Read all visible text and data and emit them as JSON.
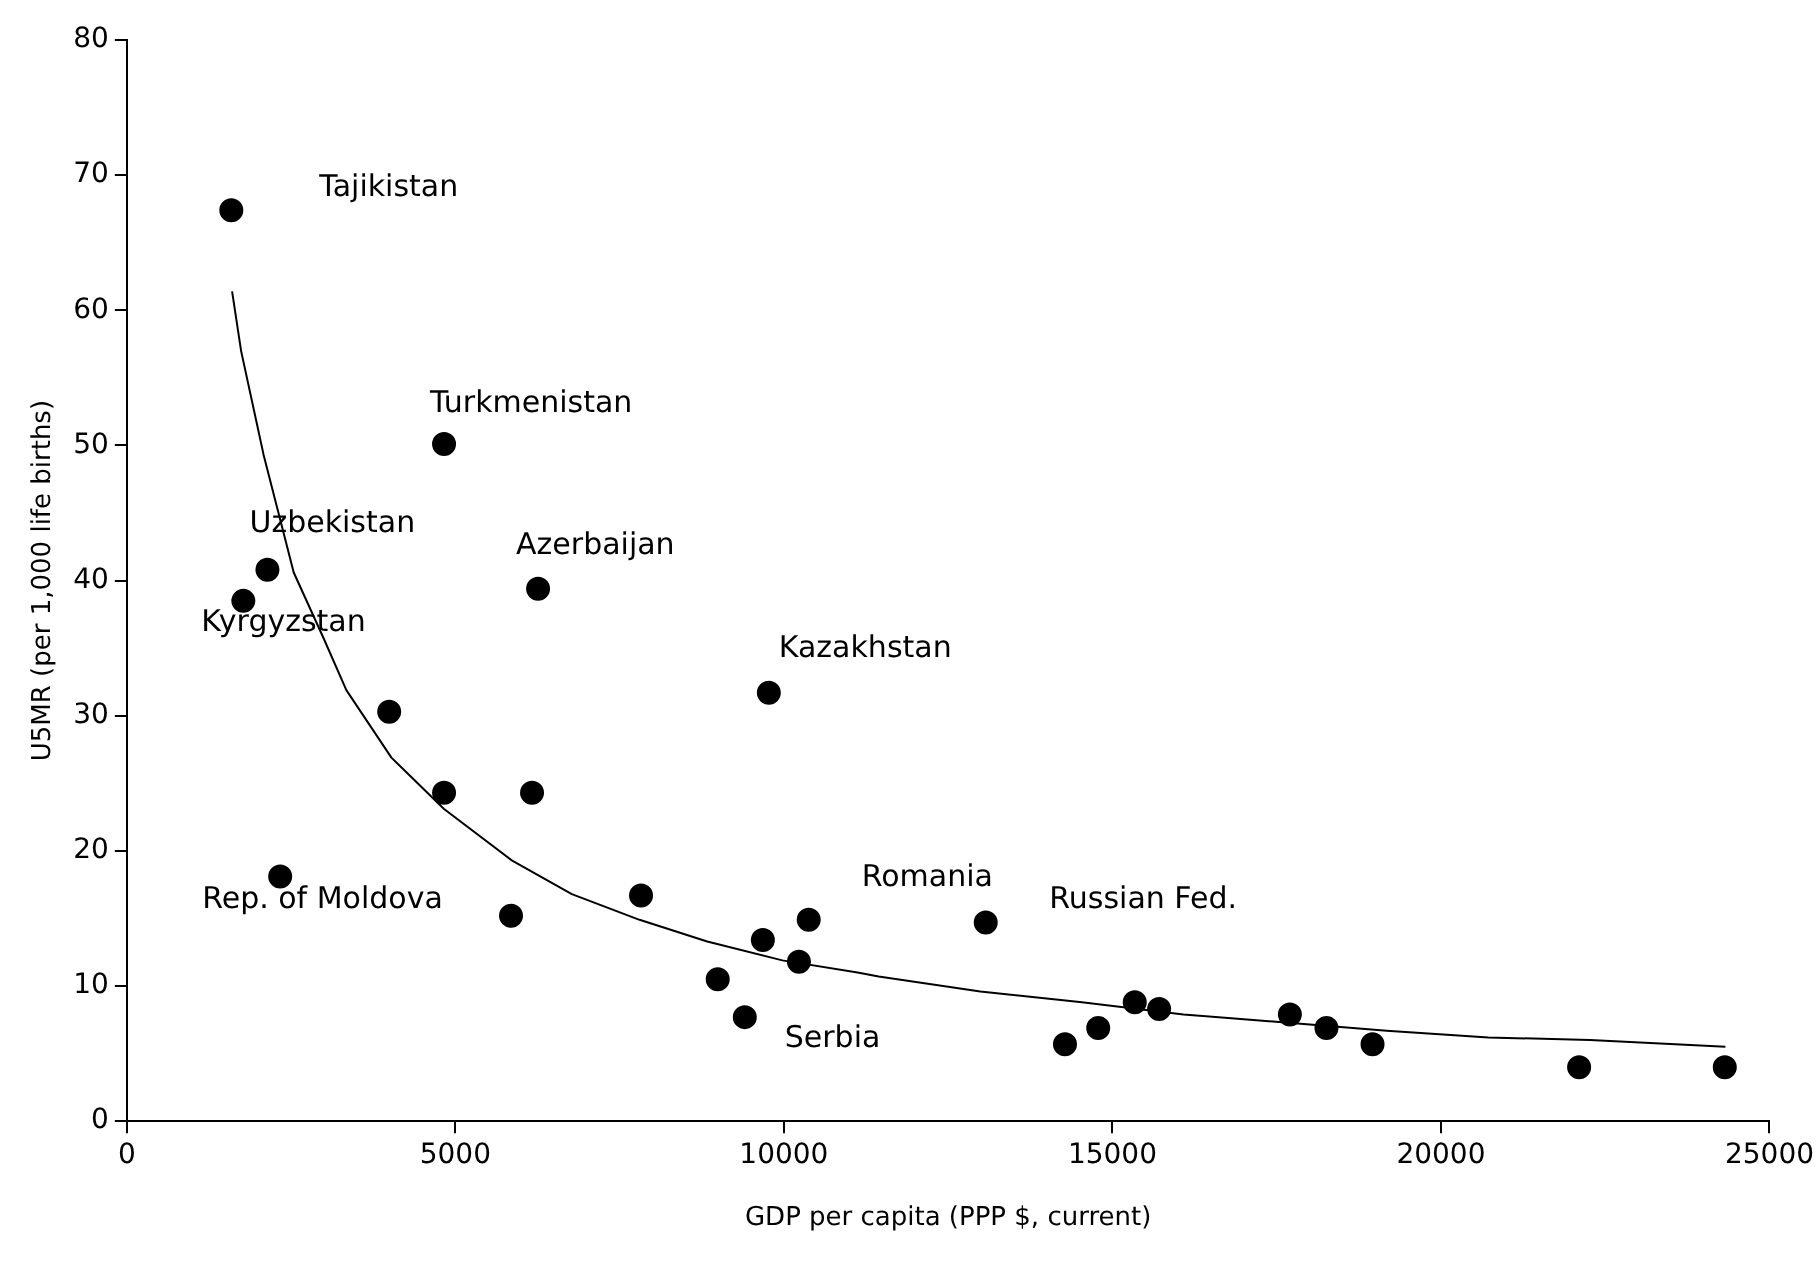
{
  "chart_data": {
    "type": "scatter",
    "xlabel": "GDP per capita (PPP $, current)",
    "ylabel": "U5MR (per 1,000 life births)",
    "xlim": [
      0,
      25000
    ],
    "xticks": [
      0,
      5000,
      10000,
      15000,
      20000,
      25000
    ],
    "ylim": [
      0,
      80
    ],
    "yticks": [
      0,
      10,
      20,
      30,
      40,
      50,
      60,
      70,
      80
    ],
    "grid": false,
    "legend": false,
    "marker": "circle",
    "series": [
      {
        "type": "scatter",
        "color": "#000000",
        "x": [
          1590,
          4828,
          2140,
          1773,
          6259,
          9771,
          3993,
          4828,
          6167,
          2334,
          5847,
          7826,
          9680,
          10378,
          10229,
          8993,
          9405,
          13072,
          14278,
          14784,
          15340,
          15711,
          17701,
          18258,
          18959,
          22103,
          24320
        ],
        "values": [
          67.4,
          50.1,
          40.8,
          38.5,
          39.4,
          31.7,
          30.3,
          24.3,
          24.3,
          18.1,
          15.2,
          16.7,
          13.4,
          14.9,
          11.8,
          10.5,
          7.7,
          14.7,
          5.7,
          6.9,
          8.8,
          8.3,
          7.9,
          6.9,
          5.7,
          4.0,
          4.0
        ]
      },
      {
        "type": "line",
        "color": "#000000",
        "marker": "none",
        "x": [
          1602,
          1739,
          2082,
          2540,
          2998,
          3341,
          4027,
          4828,
          5858,
          6773,
          7803,
          8833,
          9977,
          11121,
          11443,
          12990,
          14536,
          16082,
          17629,
          19175,
          20722,
          22268,
          24330
        ],
        "values": [
          61.4,
          57.0,
          49.3,
          40.6,
          35.7,
          31.9,
          26.9,
          23.1,
          19.3,
          16.8,
          14.9,
          13.3,
          11.9,
          11.0,
          10.7,
          9.6,
          8.8,
          7.9,
          7.3,
          6.7,
          6.2,
          6.0,
          5.5
        ]
      }
    ],
    "annotations": [
      {
        "text": "Tajikistan",
        "x": 1590,
        "y": 67.4
      },
      {
        "text": "Turkmenistan",
        "x": 4828,
        "y": 50.1
      },
      {
        "text": "Uzbekistan",
        "x": 2140,
        "y": 40.8
      },
      {
        "text": "Kyrgyzstan",
        "x": 1773,
        "y": 38.5
      },
      {
        "text": "Azerbaijan",
        "x": 6259,
        "y": 39.4
      },
      {
        "text": "Kazakhstan",
        "x": 9771,
        "y": 31.7
      },
      {
        "text": "Rep. of Moldova",
        "x": 2334,
        "y": 18.1
      },
      {
        "text": "Serbia",
        "x": 9405,
        "y": 7.7
      },
      {
        "text": "Romania",
        "x": 13072,
        "y": 14.7
      },
      "Russian Fed."
    ]
  }
}
